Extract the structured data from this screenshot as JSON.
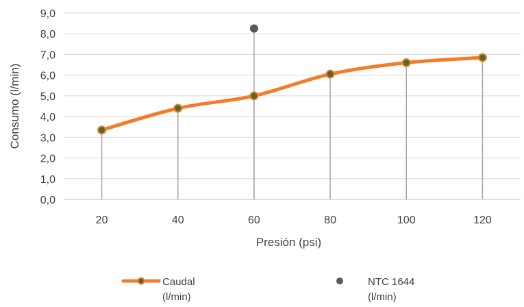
{
  "chart_data": {
    "type": "line",
    "title": "",
    "xlabel": "Presión (psi)",
    "ylabel": "Consumo (l/min)",
    "ylim": [
      0,
      9
    ],
    "y_ticks": [
      "0,0",
      "1,0",
      "2,0",
      "3,0",
      "4,0",
      "5,0",
      "6,0",
      "7,0",
      "8,0",
      "9,0"
    ],
    "categories": [
      "20",
      "40",
      "60",
      "80",
      "100",
      "120"
    ],
    "grid": "horizontal",
    "drop_lines": true,
    "legend_position": "bottom",
    "series": [
      {
        "name": "Caudal (l/min)",
        "legend_lines": [
          "Caudal",
          "(l/min)"
        ],
        "kind": "line-with-markers",
        "color": "#f47b2a",
        "marker_color": "#4e6b2c",
        "values": [
          3.35,
          4.4,
          5.0,
          6.05,
          6.6,
          6.85
        ]
      },
      {
        "name": "NTC 1644 (l/min)",
        "legend_lines": [
          "NTC 1644",
          "(l/min)"
        ],
        "kind": "point",
        "color": "#595959",
        "points": [
          {
            "x": "60",
            "y": 8.25
          }
        ]
      }
    ]
  }
}
